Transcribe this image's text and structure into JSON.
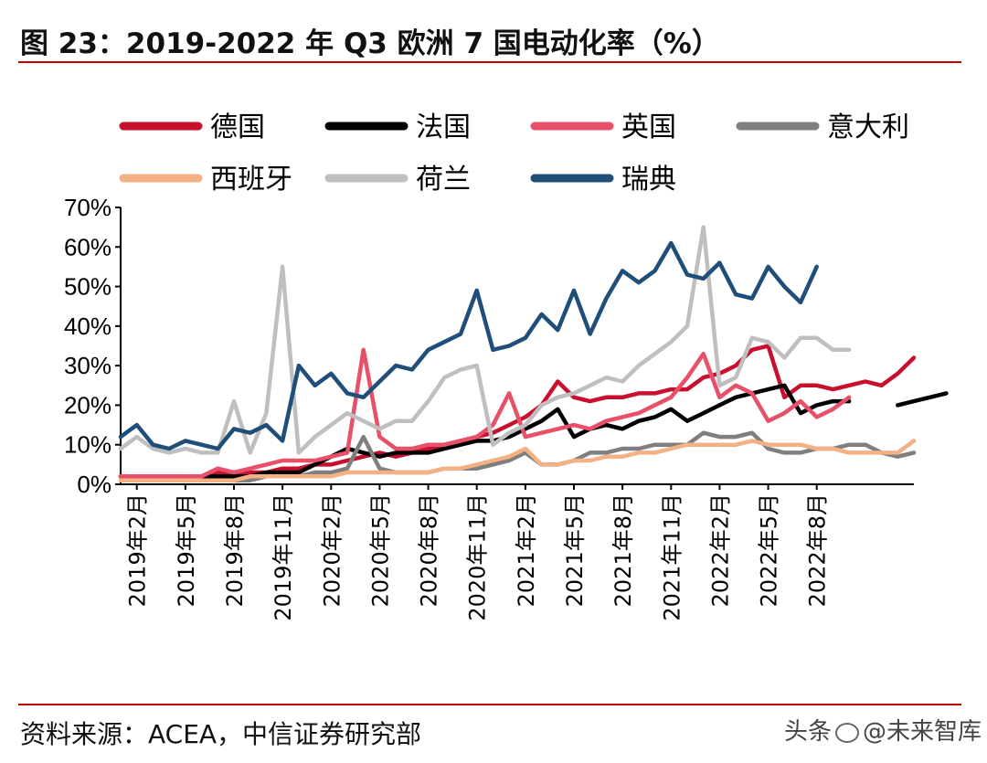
{
  "header": {
    "title": "图 23：2019-2022 年 Q3 欧洲 7 国电动化率（%）"
  },
  "footer": {
    "source": "资料来源：ACEA，中信证券研究部",
    "watermark_prefix": "头条",
    "watermark_name": "@未来智库"
  },
  "chart_data": {
    "type": "line",
    "title": "2019-2022 年 Q3 欧洲 7 国电动化率（%）",
    "xlabel": "",
    "ylabel": "",
    "ylim": [
      0,
      70
    ],
    "yticks": [
      "0%",
      "10%",
      "20%",
      "30%",
      "40%",
      "50%",
      "60%",
      "70%"
    ],
    "xtick_labels": [
      "2019年2月",
      "2019年5月",
      "2019年8月",
      "2019年11月",
      "2020年2月",
      "2020年5月",
      "2020年8月",
      "2020年11月",
      "2021年2月",
      "2021年5月",
      "2021年8月",
      "2021年11月",
      "2022年2月",
      "2022年5月",
      "2022年8月"
    ],
    "x_start": "2019年1月",
    "legend_position": "top",
    "series": [
      {
        "name": "德国",
        "color": "#c8102e",
        "values": [
          2,
          2,
          2,
          2,
          2,
          2,
          3,
          3,
          3,
          3,
          4,
          4,
          5,
          5,
          6,
          7,
          8,
          7,
          8,
          9,
          10,
          11,
          12,
          13,
          15,
          17,
          20,
          26,
          22,
          21,
          22,
          22,
          23,
          23,
          24,
          24,
          27,
          28,
          30,
          34,
          35,
          22,
          25,
          25,
          24,
          25,
          26,
          25,
          28,
          32
        ]
      },
      {
        "name": "法国",
        "color": "#000000",
        "values": [
          2,
          2,
          2,
          2,
          2,
          2,
          2,
          2,
          2,
          3,
          3,
          3,
          5,
          7,
          9,
          8,
          7,
          8,
          8,
          8,
          9,
          10,
          11,
          11,
          12,
          14,
          16,
          19,
          12,
          14,
          15,
          14,
          16,
          17,
          19,
          16,
          18,
          20,
          22,
          23,
          24,
          25,
          18,
          20,
          21,
          21,
          null,
          null,
          20,
          21,
          22,
          23
        ]
      },
      {
        "name": "英国",
        "color": "#e8506a",
        "values": [
          2,
          2,
          2,
          2,
          2,
          2,
          4,
          3,
          4,
          5,
          6,
          6,
          6,
          7,
          8,
          34,
          12,
          9,
          9,
          10,
          10,
          11,
          12,
          15,
          23,
          12,
          13,
          14,
          15,
          14,
          16,
          17,
          18,
          20,
          22,
          27,
          33,
          22,
          25,
          23,
          16,
          18,
          21,
          17,
          19,
          22
        ]
      },
      {
        "name": "意大利",
        "color": "#7f7f7f",
        "values": [
          1,
          1,
          1,
          1,
          1,
          1,
          1,
          1,
          1,
          2,
          2,
          2,
          3,
          3,
          4,
          12,
          4,
          3,
          3,
          3,
          4,
          4,
          4,
          5,
          6,
          8,
          5,
          5,
          6,
          8,
          8,
          9,
          9,
          10,
          10,
          10,
          13,
          12,
          12,
          13,
          9,
          8,
          8,
          9,
          9,
          10,
          10,
          8,
          7,
          8
        ]
      },
      {
        "name": "西班牙",
        "color": "#f4b183",
        "values": [
          1,
          1,
          1,
          1,
          1,
          1,
          1,
          1,
          2,
          2,
          2,
          2,
          2,
          2,
          3,
          3,
          3,
          3,
          3,
          3,
          4,
          4,
          5,
          6,
          7,
          9,
          5,
          5,
          6,
          6,
          7,
          7,
          8,
          8,
          9,
          10,
          10,
          10,
          10,
          11,
          10,
          10,
          10,
          9,
          9,
          8,
          8,
          8,
          8,
          11
        ]
      },
      {
        "name": "荷兰",
        "color": "#bfbfbf",
        "values": [
          9,
          12,
          9,
          8,
          9,
          8,
          8,
          21,
          8,
          18,
          55,
          8,
          12,
          15,
          18,
          16,
          14,
          16,
          16,
          21,
          27,
          29,
          30,
          10,
          13,
          15,
          20,
          22,
          23,
          25,
          27,
          26,
          30,
          33,
          36,
          40,
          65,
          25,
          27,
          37,
          36,
          32,
          37,
          37,
          34,
          34
        ]
      },
      {
        "name": "瑞典",
        "color": "#1f4e79",
        "values": [
          12,
          15,
          10,
          9,
          11,
          10,
          9,
          14,
          13,
          15,
          11,
          30,
          25,
          28,
          23,
          22,
          26,
          30,
          29,
          34,
          36,
          38,
          49,
          34,
          35,
          37,
          43,
          39,
          49,
          38,
          47,
          54,
          51,
          54,
          61,
          53,
          52,
          56,
          48,
          47,
          55,
          50,
          46,
          55
        ]
      }
    ]
  }
}
